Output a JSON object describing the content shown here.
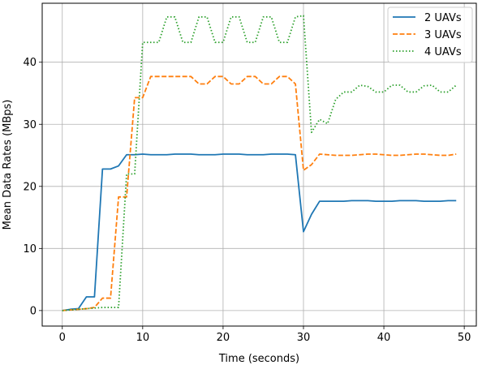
{
  "chart_data": {
    "type": "line",
    "xlabel": "Time (seconds)",
    "ylabel": "Mean Data Rates (MBps)",
    "xlim": [
      -2.5,
      51.5
    ],
    "ylim": [
      -2.5,
      49.5
    ],
    "xticks": [
      0,
      10,
      20,
      30,
      40,
      50
    ],
    "yticks": [
      0,
      10,
      20,
      30,
      40
    ],
    "grid": true,
    "legend_position": "top-right",
    "x": [
      0,
      1,
      2,
      3,
      4,
      5,
      6,
      7,
      8,
      9,
      10,
      11,
      12,
      13,
      14,
      15,
      16,
      17,
      18,
      19,
      20,
      21,
      22,
      23,
      24,
      25,
      26,
      27,
      28,
      29,
      30,
      31,
      32,
      33,
      34,
      35,
      36,
      37,
      38,
      39,
      40,
      41,
      42,
      43,
      44,
      45,
      46,
      47,
      48,
      49
    ],
    "series": [
      {
        "name": "2 UAVs",
        "color": "#1f77b4",
        "dash": "solid",
        "values": [
          0,
          0.2,
          0.3,
          2.2,
          2.2,
          22.8,
          22.8,
          23.3,
          25.1,
          25.1,
          25.2,
          25.1,
          25.1,
          25.1,
          25.2,
          25.2,
          25.2,
          25.1,
          25.1,
          25.1,
          25.2,
          25.2,
          25.2,
          25.1,
          25.1,
          25.1,
          25.2,
          25.2,
          25.2,
          25.1,
          12.7,
          15.5,
          17.6,
          17.6,
          17.6,
          17.6,
          17.7,
          17.7,
          17.7,
          17.6,
          17.6,
          17.6,
          17.7,
          17.7,
          17.7,
          17.6,
          17.6,
          17.6,
          17.7,
          17.7
        ]
      },
      {
        "name": "3 UAVs",
        "color": "#ff7f0e",
        "dash": "dashed",
        "values": [
          0,
          0.1,
          0.2,
          0.3,
          0.5,
          2,
          2,
          18.3,
          18.3,
          34.3,
          34.3,
          37.7,
          37.7,
          37.7,
          37.7,
          37.7,
          37.7,
          36.5,
          36.5,
          37.7,
          37.7,
          36.5,
          36.5,
          37.7,
          37.7,
          36.5,
          36.5,
          37.7,
          37.7,
          36.5,
          22.6,
          23.5,
          25.2,
          25.1,
          25,
          25,
          25,
          25.1,
          25.2,
          25.2,
          25.1,
          25,
          25,
          25.1,
          25.2,
          25.2,
          25.1,
          25,
          25,
          25.2
        ]
      },
      {
        "name": "4 UAVs",
        "color": "#2ca02c",
        "dash": "dotted",
        "values": [
          0,
          0.1,
          0.2,
          0.3,
          0.4,
          0.5,
          0.5,
          0.5,
          22,
          22,
          43.2,
          43.2,
          43.2,
          47.3,
          47.3,
          43.2,
          43.2,
          47.3,
          47.3,
          43.2,
          43.2,
          47.3,
          47.3,
          43.2,
          43.2,
          47.3,
          47.3,
          43.2,
          43.2,
          47.3,
          47.5,
          28.7,
          30.8,
          30.1,
          34,
          35.2,
          35.2,
          36.3,
          36.1,
          35.2,
          35.2,
          36.3,
          36.3,
          35.2,
          35.2,
          36.2,
          36.3,
          35.2,
          35.2,
          36.3
        ]
      }
    ]
  }
}
